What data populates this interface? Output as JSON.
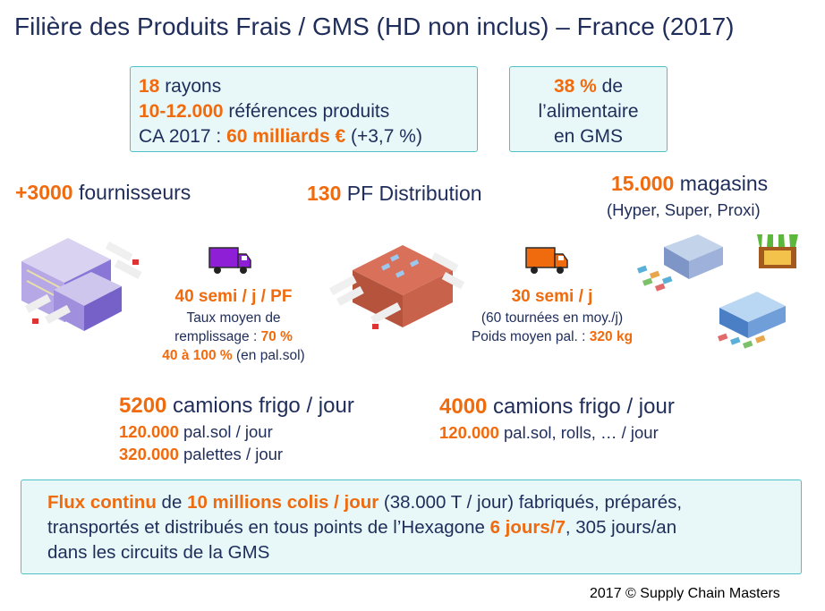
{
  "title": "Filière des Produits Frais / GMS (HD non inclus) – France (2017)",
  "box_left": {
    "line1_value": "18",
    "line1_text": " rayons",
    "line2_value": "10-12.000",
    "line2_text": " références produits",
    "line3_prefix": "CA 2017 : ",
    "line3_value": "60 milliards €",
    "line3_suffix": " (+3,7 %)"
  },
  "box_right": {
    "value": "38 %",
    "text1": " de",
    "text2": "l’alimentaire",
    "text3": "en GMS"
  },
  "suppliers": {
    "value": "+3000",
    "text": " fournisseurs"
  },
  "platforms": {
    "value": "130",
    "text": " PF Distribution"
  },
  "stores": {
    "value": "15.000",
    "text": " magasins",
    "subtext": "(Hyper, Super, Proxi)"
  },
  "left_flow": {
    "value": "40 semi / j / PF",
    "line1": "Taux moyen de",
    "line2_prefix": "remplissage : ",
    "line2_value": "70 %",
    "line3_value": "40 à 100 %",
    "line3_suffix": " (en pal.sol)"
  },
  "right_flow": {
    "value": "30 semi / j",
    "line1": "(60 tournées en moy./j)",
    "line2_prefix": "Poids moyen pal. : ",
    "line2_value": "320 kg"
  },
  "trucks_left": {
    "value": "5200",
    "text": " camions frigo / jour",
    "row1_value": "120.000",
    "row1_text": "  pal.sol / jour",
    "row2_value": "320.000",
    "row2_text": "  palettes / jour"
  },
  "trucks_right": {
    "value": "4000",
    "text": " camions frigo / jour",
    "row1_value": "120.000",
    "row1_text": "  pal.sol, rolls, … / jour"
  },
  "flux": {
    "v1": "Flux continu",
    "t1": " de ",
    "v2": "10 millions colis / jour",
    "t2": " (38.000 T / jour) fabriqués, préparés,",
    "t3": "transportés et distribués en tous points de l’Hexagone ",
    "v3": "6 jours/7",
    "t4": ", 305 jours/an",
    "t5": "dans les circuits de la GMS"
  },
  "copyright": "2017 © Supply Chain Masters",
  "colors": {
    "accent": "#f06a0e",
    "text": "#1f2d5a",
    "box_border": "#4fc1c6",
    "box_fill": "#e8f8f9"
  },
  "icons": [
    "supplier-warehouse-icon",
    "purple-truck-icon",
    "distribution-platform-icon",
    "orange-truck-icon",
    "store-building-icon",
    "shop-awning-icon",
    "hypermarket-icon"
  ]
}
